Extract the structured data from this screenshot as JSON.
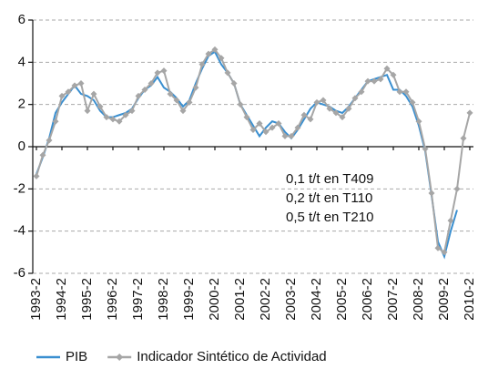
{
  "chart_data": {
    "type": "line",
    "categories": [
      "1993-2",
      null,
      null,
      null,
      "1994-2",
      null,
      null,
      null,
      "1995-2",
      null,
      null,
      null,
      "1996-2",
      null,
      null,
      null,
      "1997-2",
      null,
      null,
      null,
      "1998-2",
      null,
      null,
      null,
      "1999-2",
      null,
      null,
      null,
      "2000-2",
      null,
      null,
      null,
      "2001-2",
      null,
      null,
      null,
      "2002-2",
      null,
      null,
      null,
      "2003-2",
      null,
      null,
      null,
      "2004-2",
      null,
      null,
      null,
      "2005-2",
      null,
      null,
      null,
      "2006-2",
      null,
      null,
      null,
      "2007-2",
      null,
      null,
      null,
      "2008-2",
      null,
      null,
      null,
      "2009-2",
      null,
      null,
      null,
      "2010-2"
    ],
    "series": [
      {
        "name": "PIB",
        "color": "#3a8fd0",
        "marker": false,
        "values": [
          -1.3,
          -0.5,
          0.4,
          1.6,
          2.1,
          2.5,
          2.9,
          2.5,
          2.4,
          2.2,
          1.7,
          1.4,
          1.4,
          1.5,
          1.6,
          1.8,
          2.3,
          2.7,
          2.9,
          3.3,
          2.8,
          2.6,
          2.3,
          1.9,
          2.2,
          3.0,
          3.7,
          4.3,
          4.5,
          3.9,
          3.5,
          3.0,
          2.0,
          1.5,
          1.0,
          0.5,
          0.9,
          1.2,
          1.1,
          0.7,
          0.4,
          0.8,
          1.3,
          1.8,
          2.1,
          2.0,
          1.9,
          1.7,
          1.6,
          1.9,
          2.3,
          2.7,
          3.1,
          3.2,
          3.3,
          3.4,
          2.7,
          2.7,
          2.4,
          1.9,
          1.0,
          -0.2,
          -2.3,
          -4.5,
          -5.2,
          -4.0,
          -3.0,
          null,
          null
        ]
      },
      {
        "name": "Indicador Sintético de Actividad",
        "color": "#a6a6a6",
        "marker": true,
        "values": [
          -1.4,
          -0.4,
          0.3,
          1.2,
          2.4,
          2.6,
          2.9,
          3.0,
          1.7,
          2.5,
          1.9,
          1.4,
          1.3,
          1.2,
          1.5,
          1.7,
          2.4,
          2.7,
          3.0,
          3.5,
          3.6,
          2.5,
          2.2,
          1.7,
          2.1,
          2.8,
          3.9,
          4.4,
          4.6,
          4.2,
          3.5,
          3.0,
          2.0,
          1.4,
          0.8,
          1.1,
          0.7,
          0.9,
          1.1,
          0.5,
          0.5,
          0.9,
          1.5,
          1.3,
          2.1,
          2.2,
          1.8,
          1.6,
          1.4,
          1.8,
          2.3,
          2.6,
          3.1,
          3.1,
          3.2,
          3.7,
          3.4,
          2.6,
          2.6,
          2.1,
          1.2,
          -0.1,
          -2.2,
          -4.8,
          -5.0,
          -3.5,
          -2.0,
          0.4,
          1.6
        ]
      }
    ],
    "ylim": [
      -6,
      6
    ],
    "yticks": [
      -6,
      -4,
      -2,
      0,
      2,
      4,
      6
    ],
    "grid": true,
    "annotations": [
      "0,1 t/t en T409",
      "0,2 t/t en T110",
      "0,5 t/t en T210"
    ],
    "legend": "bottom"
  }
}
